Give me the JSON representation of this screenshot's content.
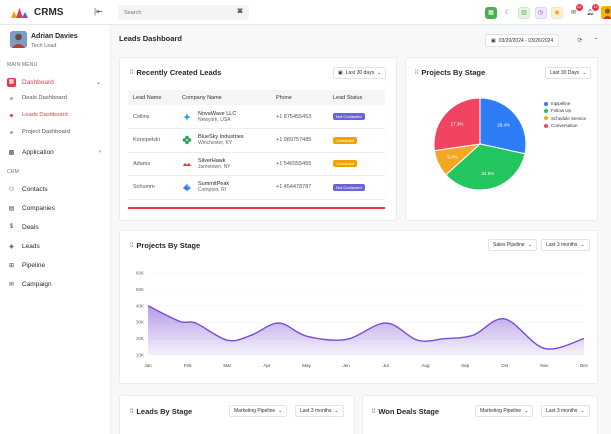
{
  "app": {
    "name": "CRMS"
  },
  "search": {
    "placeholder": "Search",
    "shortcut": "⌘"
  },
  "header_icons": [
    {
      "name": "grid-icon",
      "glyph": "▦",
      "style": "green"
    },
    {
      "name": "moon-icon",
      "glyph": "☾",
      "style": "plain"
    },
    {
      "name": "apps-icon",
      "glyph": "▥",
      "style": "lime"
    },
    {
      "name": "clock-icon",
      "glyph": "◷",
      "style": "purple"
    },
    {
      "name": "sun-icon",
      "glyph": "◉",
      "style": "orange"
    }
  ],
  "notifications": {
    "messages_badge": "14",
    "alerts_badge": "12"
  },
  "user": {
    "name": "Adrian Davies",
    "role": "Tech Lead"
  },
  "sidebar": {
    "main_menu_title": "MAIN MENU",
    "dashboard_label": "Dashboard",
    "sub_items": [
      {
        "label": "Deals Dashboard"
      },
      {
        "label": "Leads Dashboard"
      },
      {
        "label": "Project Dashboard"
      }
    ],
    "application_label": "Application",
    "crm_title": "CRM",
    "crm_items": [
      {
        "label": "Contacts",
        "icon": "contacts-icon",
        "glyph": "⚇"
      },
      {
        "label": "Companies",
        "icon": "companies-icon",
        "glyph": "▤"
      },
      {
        "label": "Deals",
        "icon": "deals-icon",
        "glyph": "$"
      },
      {
        "label": "Leads",
        "icon": "leads-icon",
        "glyph": "◈"
      },
      {
        "label": "Pipeline",
        "icon": "pipeline-icon",
        "glyph": "⊞"
      },
      {
        "label": "Campaign",
        "icon": "campaign-icon",
        "glyph": "✉"
      }
    ]
  },
  "page": {
    "title": "Leads Dashboard",
    "date_range": "03/20/2024 - 03/26/2024"
  },
  "recent_leads": {
    "title": "Recently Created Leads",
    "filter": "Last 30 days",
    "columns": [
      "Lead Name",
      "Company Name",
      "Phone",
      "Lead Status"
    ],
    "rows": [
      {
        "lead": "Collins",
        "company": "NovaWave LLC",
        "location": "Newyork, USA",
        "phone": "+1 875455453",
        "status": "Not Contacted",
        "status_color": "#6c63d6",
        "logo": "novawave-logo"
      },
      {
        "lead": "Konopelski",
        "company": "BlueSky Industries",
        "location": "Winchester, KY",
        "phone": "+1 989757485",
        "status": "Contacted",
        "status_color": "#f4a100",
        "logo": "bluesky-logo"
      },
      {
        "lead": "Adams",
        "company": "SilverHawk",
        "location": "Jametown, NY",
        "phone": "+1 546555455",
        "status": "Contacted",
        "status_color": "#f4a100",
        "logo": "silverhawk-logo"
      },
      {
        "lead": "Schumm",
        "company": "SummitPeak",
        "location": "Compton, RI",
        "phone": "+1 454478787",
        "status": "Not Contacted",
        "status_color": "#6c63d6",
        "logo": "summitpeak-logo"
      }
    ]
  },
  "projects_by_stage_pie": {
    "title": "Projects By Stage",
    "filter": "Last 30 Days"
  },
  "projects_by_stage_area": {
    "title": "Projects By Stage",
    "pipeline_filter": "Sales Pipeline",
    "range_filter": "Last 3 months"
  },
  "leads_by_stage": {
    "title": "Leads By Stage",
    "pipeline_filter": "Marketing Pipeline",
    "range_filter": "Last 3 months"
  },
  "won_deals_stage": {
    "title": "Won Deals Stage",
    "pipeline_filter": "Marketing Pipeline",
    "range_filter": "Last 3 months"
  },
  "chart_data": [
    {
      "type": "pie",
      "title": "Projects By Stage",
      "series": [
        {
          "name": "Inpipeline",
          "value": 28.4,
          "label": "28.4%",
          "color": "#2f7df6"
        },
        {
          "name": "Follow Up",
          "value": 34.9,
          "label": "34.9%",
          "color": "#22c55e"
        },
        {
          "name": "Schedule Service",
          "value": 9.4,
          "label": "9.4%",
          "color": "#f5a623"
        },
        {
          "name": "Conversation",
          "value": 27.3,
          "label": "27.3%",
          "color": "#f04462"
        }
      ]
    },
    {
      "type": "area",
      "title": "Projects By Stage",
      "categories": [
        "Jan",
        "Feb",
        "Mar",
        "Apr",
        "May",
        "Jun",
        "Jul",
        "Aug",
        "Sep",
        "Oct",
        "Nov",
        "Dec"
      ],
      "y_ticks": [
        "60K",
        "50K",
        "40K",
        "30K",
        "20K",
        "10K"
      ],
      "ylim": [
        10000,
        60000
      ],
      "points": [
        [
          0,
          40000
        ],
        [
          0.8,
          30500
        ],
        [
          1.2,
          29500
        ],
        [
          2,
          19000
        ],
        [
          2.6,
          22000
        ],
        [
          3.3,
          29500
        ],
        [
          4,
          21500
        ],
        [
          5,
          19500
        ],
        [
          6,
          29500
        ],
        [
          6.8,
          19000
        ],
        [
          7.5,
          20000
        ],
        [
          8.2,
          22000
        ],
        [
          9,
          32000
        ],
        [
          10,
          14000
        ],
        [
          11,
          20000
        ]
      ],
      "color": "#7b4bd6"
    }
  ]
}
